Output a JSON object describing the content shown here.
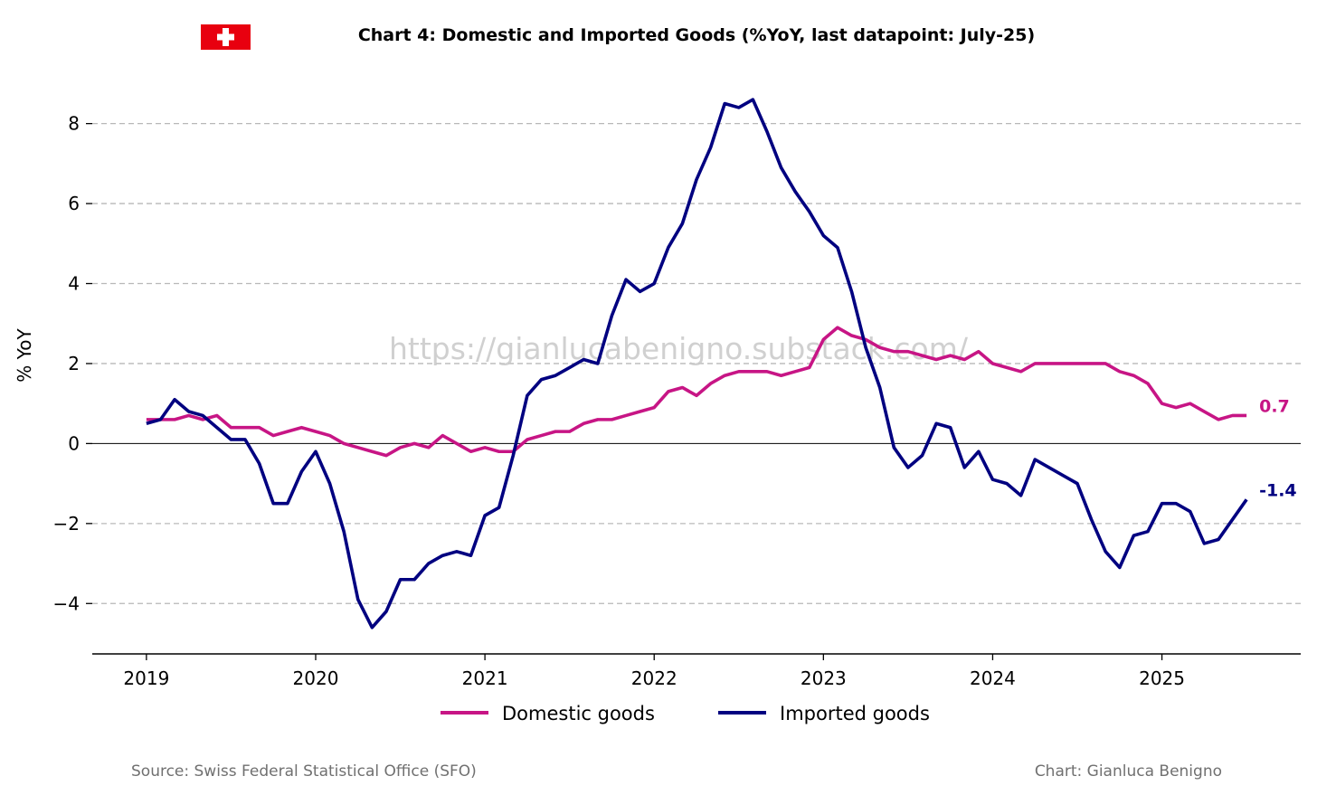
{
  "chart_data": {
    "type": "line",
    "title": "Chart 4: Domestic and Imported Goods (%YoY, last datapoint: July-25)",
    "xlabel": "",
    "ylabel": "% YoY",
    "x_start": "2019-01",
    "frequency": "monthly",
    "xlim_years": [
      2018.68,
      2025.82
    ],
    "ylim": [
      -5.26,
      9.1
    ],
    "yticks": [
      -4,
      -2,
      0,
      2,
      4,
      6,
      8
    ],
    "ytick_labels": [
      "−4",
      "−2",
      "0",
      "2",
      "4",
      "6",
      "8"
    ],
    "xticks": [
      2019,
      2020,
      2021,
      2022,
      2023,
      2024,
      2025
    ],
    "xtick_labels": [
      "2019",
      "2020",
      "2021",
      "2022",
      "2023",
      "2024",
      "2025"
    ],
    "grid": "horizontal dashed",
    "legend_position": "bottom-center",
    "series": [
      {
        "name": "Domestic goods",
        "color": "#C71585",
        "end_label": "0.7",
        "values": [
          0.6,
          0.6,
          0.6,
          0.7,
          0.6,
          0.7,
          0.4,
          0.4,
          0.4,
          0.2,
          0.3,
          0.4,
          0.3,
          0.2,
          0.0,
          -0.1,
          -0.2,
          -0.3,
          -0.1,
          0.0,
          -0.1,
          0.2,
          0.0,
          -0.2,
          -0.1,
          -0.2,
          -0.2,
          0.1,
          0.2,
          0.3,
          0.3,
          0.5,
          0.6,
          0.6,
          0.7,
          0.8,
          0.9,
          1.3,
          1.4,
          1.2,
          1.5,
          1.7,
          1.8,
          1.8,
          1.8,
          1.7,
          1.8,
          1.9,
          2.6,
          2.9,
          2.7,
          2.6,
          2.4,
          2.3,
          2.3,
          2.2,
          2.1,
          2.2,
          2.1,
          2.3,
          2.0,
          1.9,
          1.8,
          2.0,
          2.0,
          2.0,
          2.0,
          2.0,
          2.0,
          1.8,
          1.7,
          1.5,
          1.0,
          0.9,
          1.0,
          0.8,
          0.6,
          0.7,
          0.7
        ]
      },
      {
        "name": "Imported goods",
        "color": "#000080",
        "end_label": "-1.4",
        "values": [
          0.5,
          0.6,
          1.1,
          0.8,
          0.7,
          0.4,
          0.1,
          0.1,
          -0.5,
          -1.5,
          -1.5,
          -0.7,
          -0.2,
          -1.0,
          -2.2,
          -3.9,
          -4.6,
          -4.2,
          -3.4,
          -3.4,
          -3.0,
          -2.8,
          -2.7,
          -2.8,
          -1.8,
          -1.6,
          -0.3,
          1.2,
          1.6,
          1.7,
          1.9,
          2.1,
          2.0,
          3.2,
          4.1,
          3.8,
          4.0,
          4.9,
          5.5,
          6.6,
          7.4,
          8.5,
          8.4,
          8.6,
          7.8,
          6.9,
          6.3,
          5.8,
          5.2,
          4.9,
          3.8,
          2.4,
          1.4,
          -0.1,
          -0.6,
          -0.3,
          0.5,
          0.4,
          -0.6,
          -0.2,
          -0.9,
          -1.0,
          -1.3,
          -0.4,
          -0.6,
          -0.8,
          -1.0,
          -1.9,
          -2.7,
          -3.1,
          -2.3,
          -2.2,
          -1.5,
          -1.5,
          -1.7,
          -2.5,
          -2.4,
          -1.9,
          -1.4
        ]
      }
    ]
  },
  "watermark": "https://gianlucabenigno.substack.com/",
  "source": "Source: Swiss Federal Statistical Office (SFO)",
  "credit": "Chart: Gianluca Benigno",
  "flag": "swiss-flag"
}
